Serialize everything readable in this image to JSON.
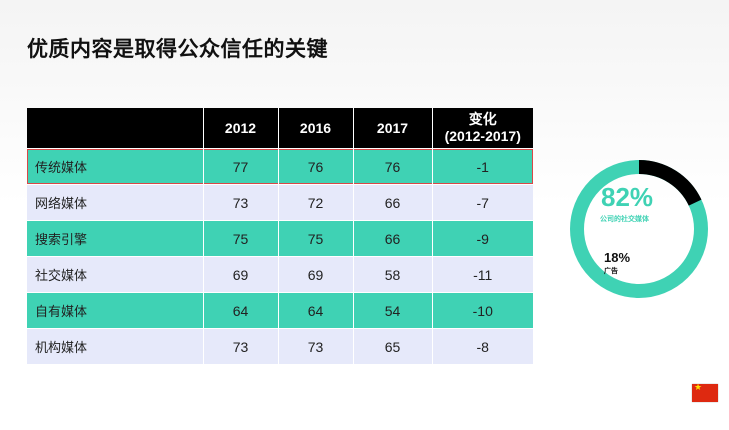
{
  "title": "优质内容是取得公众信任的关键",
  "table": {
    "headers": [
      "",
      "2012",
      "2016",
      "2017",
      "变化\n(2012-2017)"
    ],
    "rows": [
      [
        "传统媒体",
        "77",
        "76",
        "76",
        "-1"
      ],
      [
        "网络媒体",
        "73",
        "72",
        "66",
        "-7"
      ],
      [
        "搜索引擎",
        "75",
        "75",
        "66",
        "-9"
      ],
      [
        "社交媒体",
        "69",
        "69",
        "58",
        "-11"
      ],
      [
        "自有媒体",
        "64",
        "64",
        "54",
        "-10"
      ],
      [
        "机构媒体",
        "73",
        "73",
        "65",
        "-8"
      ]
    ]
  },
  "donut": {
    "primary": {
      "value_text": "82%",
      "label": "公司的社交媒体",
      "fraction": 0.82,
      "color": "#3fd2b4"
    },
    "secondary": {
      "value_text": "18%",
      "label": "广告",
      "fraction": 0.18,
      "color": "#000000"
    }
  },
  "colors": {
    "teal": "#3fd2b4",
    "lavender": "#e6e9fa",
    "header": "#000000",
    "highlight_border": "#d84848"
  },
  "flag_icon": "china-flag-icon"
}
